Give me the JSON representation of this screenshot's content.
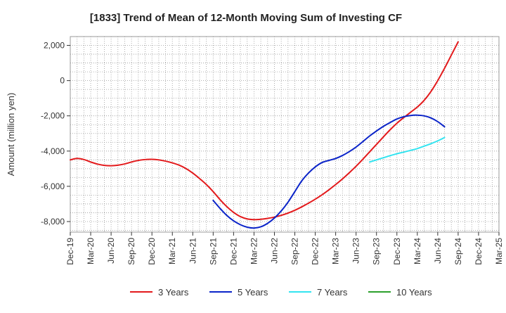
{
  "chart_data": {
    "type": "line",
    "title": "[1833]  Trend of Mean of 12-Month Moving Sum of Investing CF",
    "xlabel": "",
    "ylabel": "Amount (million yen)",
    "ylim": [
      -8600,
      2500
    ],
    "yticks": [
      2000,
      0,
      -2000,
      -4000,
      -6000,
      -8000
    ],
    "ytick_labels": [
      "2,000",
      "0",
      "-2,000",
      "-4,000",
      "-6,000",
      "-8,000"
    ],
    "x_range": [
      0,
      63
    ],
    "xtick_labels": [
      "Dec-19",
      "Mar-20",
      "Jun-20",
      "Sep-20",
      "Dec-20",
      "Mar-21",
      "Jun-21",
      "Sep-21",
      "Dec-21",
      "Mar-22",
      "Jun-22",
      "Sep-22",
      "Dec-22",
      "Mar-23",
      "Jun-23",
      "Sep-23",
      "Dec-23",
      "Mar-24",
      "Jun-24",
      "Sep-24",
      "Dec-24",
      "Mar-25"
    ],
    "grid": true,
    "legend_position": "bottom",
    "series": [
      {
        "name": "3 Years",
        "color": "#e31a1c",
        "points": [
          [
            0,
            -4500
          ],
          [
            1,
            -4420
          ],
          [
            2,
            -4480
          ],
          [
            3,
            -4620
          ],
          [
            4,
            -4740
          ],
          [
            5,
            -4810
          ],
          [
            6,
            -4830
          ],
          [
            7,
            -4800
          ],
          [
            8,
            -4730
          ],
          [
            9,
            -4620
          ],
          [
            10,
            -4530
          ],
          [
            11,
            -4480
          ],
          [
            12,
            -4470
          ],
          [
            13,
            -4500
          ],
          [
            14,
            -4570
          ],
          [
            15,
            -4670
          ],
          [
            16,
            -4800
          ],
          [
            17,
            -4990
          ],
          [
            18,
            -5250
          ],
          [
            19,
            -5560
          ],
          [
            20,
            -5900
          ],
          [
            21,
            -6300
          ],
          [
            22,
            -6750
          ],
          [
            23,
            -7150
          ],
          [
            24,
            -7480
          ],
          [
            25,
            -7720
          ],
          [
            26,
            -7850
          ],
          [
            27,
            -7890
          ],
          [
            28,
            -7870
          ],
          [
            29,
            -7820
          ],
          [
            30,
            -7750
          ],
          [
            31,
            -7650
          ],
          [
            32,
            -7520
          ],
          [
            33,
            -7360
          ],
          [
            34,
            -7170
          ],
          [
            35,
            -6960
          ],
          [
            36,
            -6730
          ],
          [
            37,
            -6480
          ],
          [
            38,
            -6200
          ],
          [
            39,
            -5900
          ],
          [
            40,
            -5580
          ],
          [
            41,
            -5230
          ],
          [
            42,
            -4860
          ],
          [
            43,
            -4460
          ],
          [
            44,
            -4040
          ],
          [
            45,
            -3620
          ],
          [
            46,
            -3200
          ],
          [
            47,
            -2790
          ],
          [
            48,
            -2420
          ],
          [
            49,
            -2100
          ],
          [
            50,
            -1800
          ],
          [
            51,
            -1500
          ],
          [
            52,
            -1120
          ],
          [
            53,
            -620
          ],
          [
            54,
            0
          ],
          [
            55,
            700
          ],
          [
            56,
            1450
          ],
          [
            57,
            2200
          ]
        ]
      },
      {
        "name": "5 Years",
        "color": "#0b24c9",
        "points": [
          [
            21,
            -6800
          ],
          [
            22,
            -7250
          ],
          [
            23,
            -7650
          ],
          [
            24,
            -7960
          ],
          [
            25,
            -8180
          ],
          [
            26,
            -8320
          ],
          [
            27,
            -8370
          ],
          [
            28,
            -8300
          ],
          [
            29,
            -8100
          ],
          [
            30,
            -7800
          ],
          [
            31,
            -7400
          ],
          [
            32,
            -6900
          ],
          [
            33,
            -6300
          ],
          [
            34,
            -5700
          ],
          [
            35,
            -5250
          ],
          [
            36,
            -4900
          ],
          [
            37,
            -4650
          ],
          [
            38,
            -4530
          ],
          [
            39,
            -4420
          ],
          [
            40,
            -4250
          ],
          [
            41,
            -4030
          ],
          [
            42,
            -3770
          ],
          [
            43,
            -3460
          ],
          [
            44,
            -3140
          ],
          [
            45,
            -2860
          ],
          [
            46,
            -2600
          ],
          [
            47,
            -2380
          ],
          [
            48,
            -2180
          ],
          [
            49,
            -2050
          ],
          [
            50,
            -1980
          ],
          [
            51,
            -1960
          ],
          [
            52,
            -2000
          ],
          [
            53,
            -2120
          ],
          [
            54,
            -2330
          ],
          [
            55,
            -2620
          ]
        ]
      },
      {
        "name": "7 Years",
        "color": "#33e4f0",
        "points": [
          [
            44,
            -4620
          ],
          [
            45,
            -4500
          ],
          [
            46,
            -4380
          ],
          [
            47,
            -4260
          ],
          [
            48,
            -4150
          ],
          [
            49,
            -4060
          ],
          [
            50,
            -3960
          ],
          [
            51,
            -3860
          ],
          [
            52,
            -3720
          ],
          [
            53,
            -3580
          ],
          [
            54,
            -3420
          ],
          [
            55,
            -3230
          ]
        ]
      },
      {
        "name": "10 Years",
        "color": "#2ca02c",
        "points": []
      }
    ]
  }
}
